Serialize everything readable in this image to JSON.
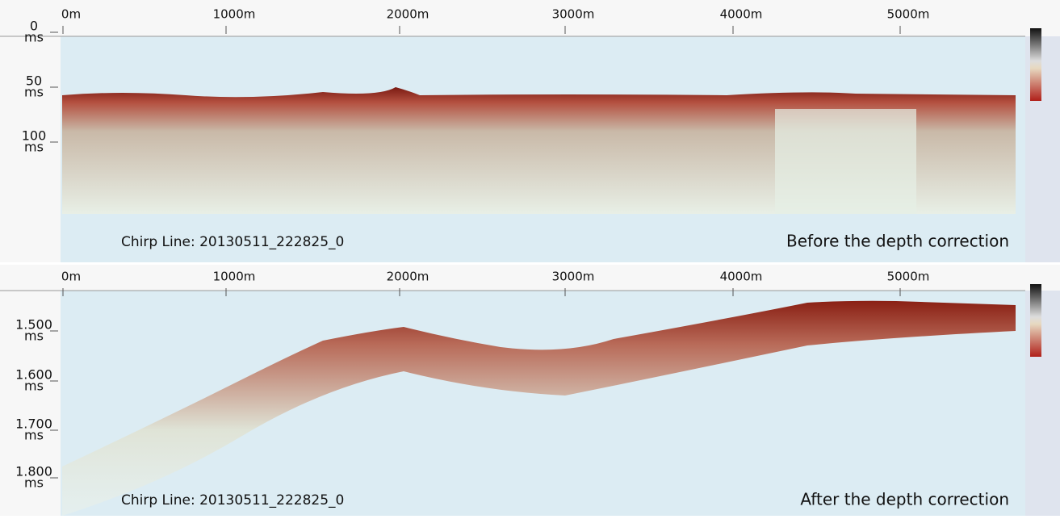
{
  "panels": [
    {
      "x_labels": [
        "0m",
        "1000m",
        "2000m",
        "3000m",
        "4000m",
        "5000m"
      ],
      "y_labels": [
        {
          "value": "0",
          "unit": "ms"
        },
        {
          "value": "50",
          "unit": "ms"
        },
        {
          "value": "100",
          "unit": "ms"
        }
      ],
      "caption_left": "Chirp Line: 20130511_222825_0",
      "caption_right": "Before the depth correction"
    },
    {
      "x_labels": [
        "0m",
        "1000m",
        "2000m",
        "3000m",
        "4000m",
        "5000m"
      ],
      "y_labels": [
        {
          "value": "1.500",
          "unit": "ms"
        },
        {
          "value": "1.600",
          "unit": "ms"
        },
        {
          "value": "1.700",
          "unit": "ms"
        },
        {
          "value": "1.800",
          "unit": "ms"
        }
      ],
      "caption_left": "Chirp Line: 20130511_222825_0",
      "caption_right": "After the depth correction"
    }
  ]
}
